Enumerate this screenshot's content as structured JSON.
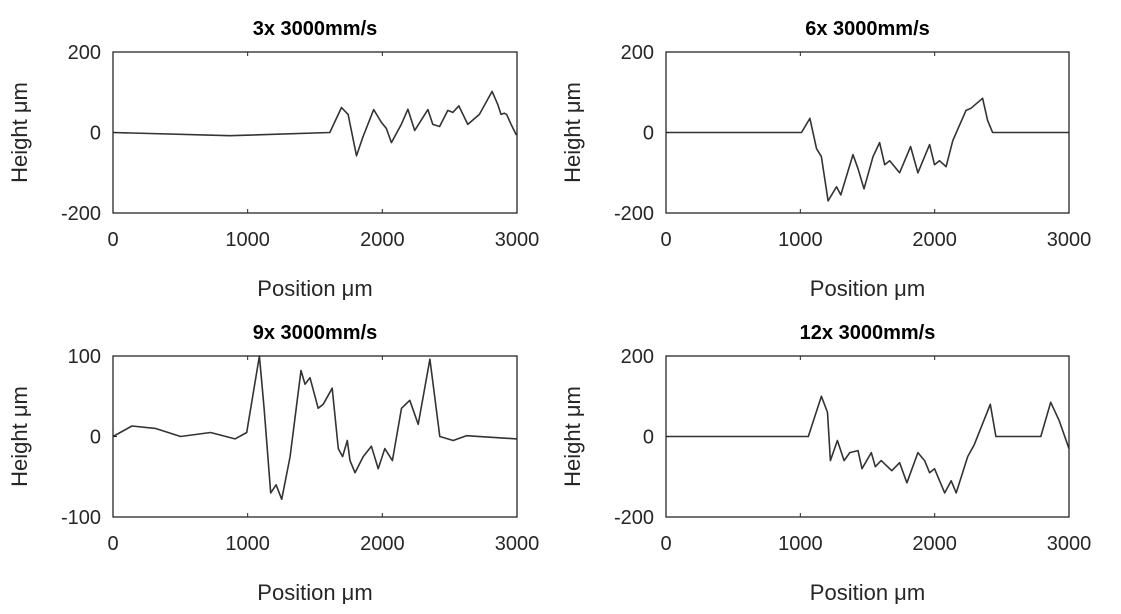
{
  "chart_data": [
    {
      "type": "line",
      "title": "3x 3000mm/s",
      "xlabel": "Position μm",
      "ylabel": "Height μm",
      "xlim": [
        0,
        3000
      ],
      "ylim": [
        -200,
        200
      ],
      "xticks": [
        0,
        1000,
        2000,
        3000
      ],
      "yticks": [
        -200,
        0,
        200
      ],
      "grid": false,
      "x": [
        0,
        870,
        1610,
        1697,
        1746,
        1808,
        1857,
        1936,
        1993,
        2030,
        2067,
        2141,
        2190,
        2240,
        2338,
        2375,
        2425,
        2486,
        2523,
        2568,
        2635,
        2721,
        2815,
        2857,
        2881,
        2906,
        2923,
        2956,
        2993,
        3000
      ],
      "y": [
        0,
        -8,
        0,
        62,
        45,
        -58,
        -10,
        57,
        25,
        10,
        -25,
        20,
        58,
        5,
        57,
        20,
        15,
        55,
        50,
        66,
        20,
        45,
        102,
        70,
        45,
        48,
        45,
        20,
        -5,
        -5
      ]
    },
    {
      "type": "line",
      "title": "6x 3000mm/s",
      "xlabel": "Position μm",
      "ylabel": "Height μm",
      "xlim": [
        0,
        3000
      ],
      "ylim": [
        -200,
        200
      ],
      "xticks": [
        0,
        1000,
        2000,
        3000
      ],
      "yticks": [
        -200,
        0,
        200
      ],
      "grid": false,
      "x": [
        0,
        1009,
        1071,
        1120,
        1157,
        1207,
        1269,
        1301,
        1392,
        1429,
        1474,
        1541,
        1590,
        1628,
        1665,
        1739,
        1821,
        1875,
        1962,
        1999,
        2036,
        2085,
        2135,
        2233,
        2270,
        2357,
        2394,
        2431,
        3000
      ],
      "y": [
        0,
        0,
        35,
        -40,
        -60,
        -170,
        -135,
        -155,
        -55,
        -90,
        -140,
        -60,
        -25,
        -80,
        -70,
        -100,
        -35,
        -100,
        -30,
        -80,
        -70,
        -85,
        -20,
        55,
        60,
        85,
        30,
        0,
        0
      ]
    },
    {
      "type": "line",
      "title": "9x 3000mm/s",
      "xlabel": "Position μm",
      "ylabel": "Height μm",
      "xlim": [
        0,
        3000
      ],
      "ylim": [
        -100,
        100
      ],
      "xticks": [
        0,
        1000,
        2000,
        3000
      ],
      "yticks": [
        -100,
        0,
        100
      ],
      "grid": false,
      "x": [
        0,
        140,
        314,
        502,
        724,
        906,
        993,
        1087,
        1122,
        1171,
        1211,
        1253,
        1315,
        1396,
        1426,
        1463,
        1524,
        1561,
        1628,
        1673,
        1705,
        1740,
        1760,
        1797,
        1858,
        1919,
        1969,
        2018,
        2075,
        2142,
        2204,
        2266,
        2353,
        2427,
        2526,
        2624,
        3000
      ],
      "y": [
        0,
        13,
        10,
        0,
        5,
        -3,
        5,
        100,
        35,
        -70,
        -60,
        -78,
        -25,
        82,
        65,
        73,
        35,
        40,
        60,
        -15,
        -25,
        -5,
        -30,
        -45,
        -25,
        -12,
        -40,
        -15,
        -30,
        35,
        45,
        15,
        96,
        0,
        -5,
        1,
        -3
      ]
    },
    {
      "type": "line",
      "title": "12x 3000mm/s",
      "xlabel": "Position μm",
      "ylabel": "Height μm",
      "xlim": [
        0,
        3000
      ],
      "ylim": [
        -200,
        200
      ],
      "xticks": [
        0,
        1000,
        2000,
        3000
      ],
      "yticks": [
        -200,
        0,
        200
      ],
      "grid": false,
      "x": [
        0,
        1059,
        1157,
        1202,
        1224,
        1276,
        1326,
        1368,
        1429,
        1459,
        1528,
        1558,
        1602,
        1681,
        1739,
        1793,
        1875,
        1925,
        1962,
        1999,
        2075,
        2123,
        2160,
        2246,
        2295,
        2414,
        2456,
        2790,
        2864,
        2926,
        3000
      ],
      "y": [
        0,
        0,
        100,
        60,
        -60,
        -10,
        -60,
        -40,
        -35,
        -80,
        -40,
        -75,
        -60,
        -85,
        -65,
        -115,
        -40,
        -60,
        -90,
        -80,
        -140,
        -110,
        -140,
        -50,
        -20,
        80,
        0,
        0,
        85,
        40,
        -30
      ]
    }
  ]
}
